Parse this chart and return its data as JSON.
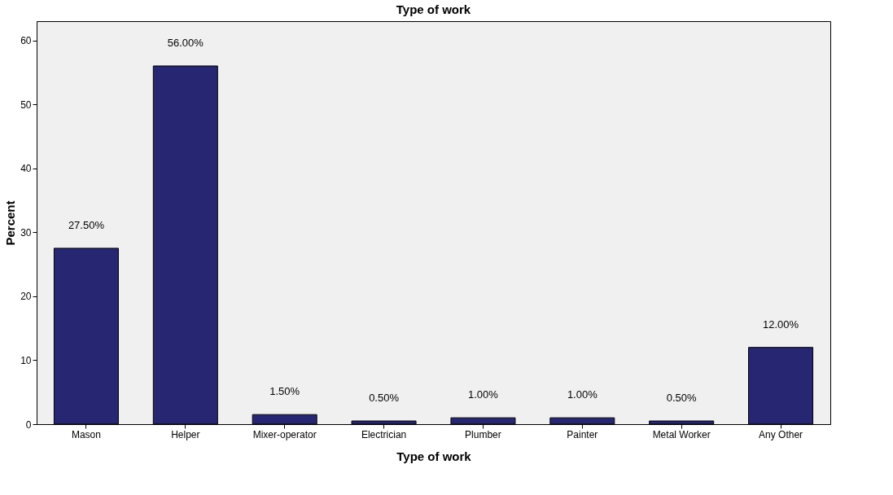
{
  "chart_data": {
    "type": "bar",
    "title": "Type of work",
    "xlabel": "Type of work",
    "ylabel": "Percent",
    "categories": [
      "Mason",
      "Helper",
      "Mixer-operator",
      "Electrician",
      "Plumber",
      "Painter",
      "Metal Worker",
      "Any Other"
    ],
    "values": [
      27.5,
      56,
      1.5,
      0.5,
      1,
      1,
      0.5,
      12
    ],
    "value_labels": [
      "27.50%",
      "56.00%",
      "1.50%",
      "0.50%",
      "1.00%",
      "1.00%",
      "0.50%",
      "12.00%"
    ],
    "color": "#262673",
    "ylim": [
      0,
      63
    ],
    "yticks": [
      0,
      10,
      20,
      30,
      40,
      50,
      60
    ],
    "grid": false
  }
}
